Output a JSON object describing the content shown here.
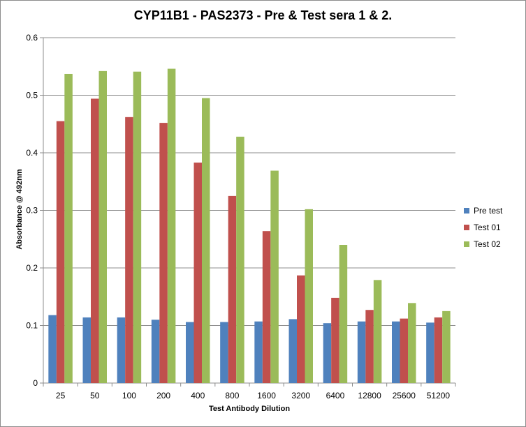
{
  "chart_data": {
    "type": "bar",
    "title": "CYP11B1 - PAS2373 - Pre & Test sera 1 & 2.",
    "xlabel": "Test Antibody Dilution",
    "ylabel": "Absorbance @ 492nm",
    "ylim": [
      0,
      0.6
    ],
    "yticks": [
      "0",
      "0.1",
      "0.2",
      "0.3",
      "0.4",
      "0.5",
      "0.6"
    ],
    "grid": true,
    "legend_position": "right",
    "categories": [
      "25",
      "50",
      "100",
      "200",
      "400",
      "800",
      "1600",
      "3200",
      "6400",
      "12800",
      "25600",
      "51200"
    ],
    "series": [
      {
        "name": "Pre test",
        "color": "#4f81bd",
        "values": [
          0.118,
          0.114,
          0.114,
          0.11,
          0.106,
          0.106,
          0.107,
          0.111,
          0.104,
          0.107,
          0.107,
          0.105
        ]
      },
      {
        "name": "Test 01",
        "color": "#c0504d",
        "values": [
          0.455,
          0.494,
          0.462,
          0.452,
          0.383,
          0.325,
          0.264,
          0.187,
          0.148,
          0.127,
          0.112,
          0.114
        ]
      },
      {
        "name": "Test 02",
        "color": "#9bbb59",
        "values": [
          0.537,
          0.542,
          0.541,
          0.546,
          0.495,
          0.428,
          0.369,
          0.302,
          0.24,
          0.179,
          0.139,
          0.125
        ]
      }
    ]
  }
}
